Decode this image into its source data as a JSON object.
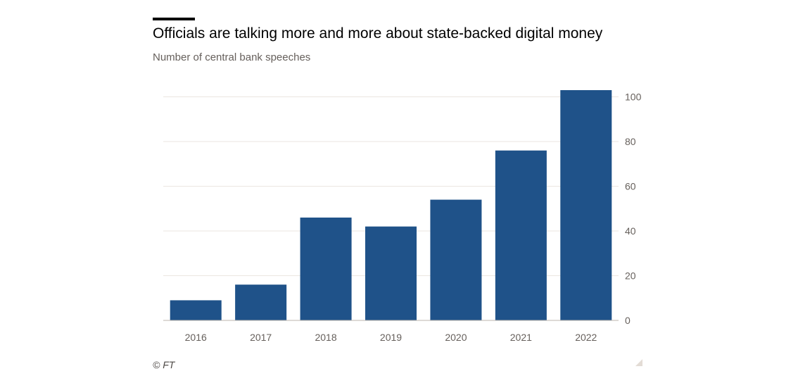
{
  "title": "Officials are talking more and more about state-backed digital money",
  "subtitle": "Number of central bank speeches",
  "source": "© FT",
  "colors": {
    "bar": "#1f5289",
    "grid": "#ebe6e1",
    "axis": "#bdb6ae"
  },
  "chart_data": {
    "type": "bar",
    "title": "Officials are talking more and more about state-backed digital money",
    "subtitle": "Number of central bank speeches",
    "categories": [
      "2016",
      "2017",
      "2018",
      "2019",
      "2020",
      "2021",
      "2022"
    ],
    "values": [
      9,
      16,
      46,
      42,
      54,
      76,
      103
    ],
    "xlabel": "",
    "ylabel": "",
    "ylim": [
      0,
      103
    ],
    "yticks": [
      0,
      20,
      40,
      60,
      80,
      100
    ],
    "y_axis_side": "right",
    "grid": true,
    "legend": "none"
  }
}
